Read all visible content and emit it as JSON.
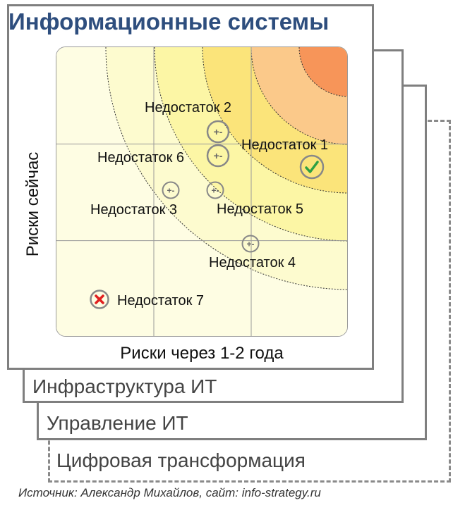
{
  "title": "Информационные системы",
  "axis": {
    "x_label": "Риски через 1-2 года",
    "y_label": "Риски сейчас"
  },
  "layers": [
    {
      "label": "Инфраструктура ИТ"
    },
    {
      "label": "Управление ИТ"
    },
    {
      "label": "Цифровая трансформация"
    }
  ],
  "zone_colors": [
    "#fefde3",
    "#fdfbcf",
    "#fcf6a5",
    "#fbe47a",
    "#fbc98a",
    "#f79559"
  ],
  "markers": [
    {
      "label": "Недостаток 1",
      "icon": "check-icon"
    },
    {
      "label": "Недостаток 2",
      "icon": "plus-minus-icon"
    },
    {
      "label": "Недостаток 3",
      "icon": "plus-minus-icon"
    },
    {
      "label": "Недостаток 4",
      "icon": "plus-minus-icon"
    },
    {
      "label": "Недостаток 5",
      "icon": "plus-minus-icon"
    },
    {
      "label": "Недостаток 6",
      "icon": "plus-minus-icon"
    },
    {
      "label": "Недостаток 7",
      "icon": "cross-icon"
    }
  ],
  "source": "Источник: Александр Михайлов, сайт: info-strategy.ru"
}
